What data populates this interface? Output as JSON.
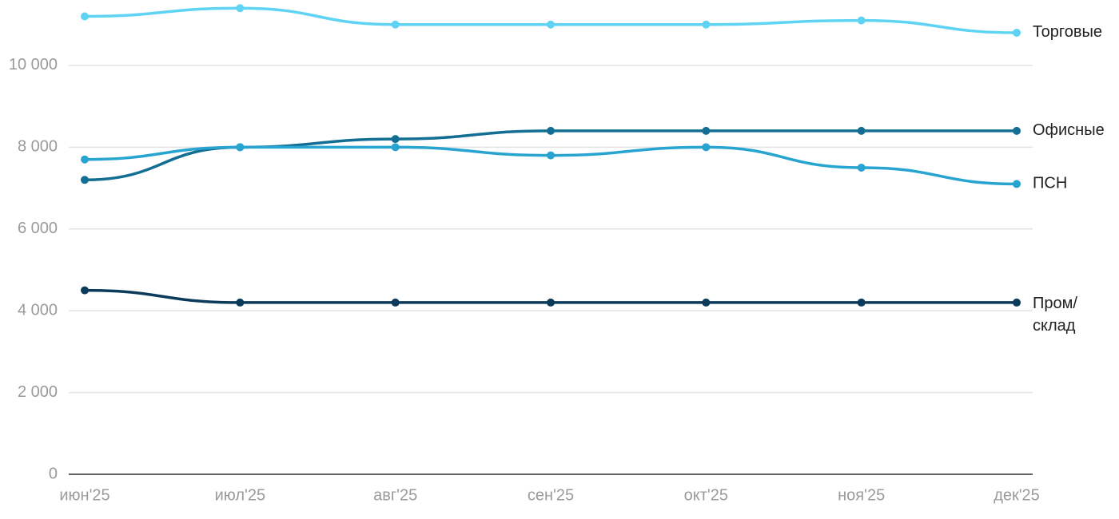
{
  "chart_data": {
    "type": "line",
    "categories": [
      "июн'25",
      "июл'25",
      "авг'25",
      "сен'25",
      "окт'25",
      "ноя'25",
      "дек'25"
    ],
    "series": [
      {
        "name": "Торговые",
        "color": "#5fd3f3",
        "values": [
          11200,
          11400,
          11000,
          11000,
          11000,
          11100,
          10800
        ]
      },
      {
        "name": "Офисные",
        "color": "#136e94",
        "values": [
          7200,
          8000,
          8200,
          8400,
          8400,
          8400,
          8400
        ]
      },
      {
        "name": "ПСН",
        "color": "#27a4d0",
        "values": [
          7700,
          8000,
          8000,
          7800,
          8000,
          7500,
          7100
        ]
      },
      {
        "name": "Пром/склад",
        "color": "#0b3a5b",
        "values": [
          4500,
          4200,
          4200,
          4200,
          4200,
          4200,
          4200
        ]
      }
    ],
    "ylim": [
      0,
      11600
    ],
    "yticks": [
      0,
      {
        "value": 2000,
        "label": "2 000"
      },
      {
        "value": 4000,
        "label": "4 000"
      },
      {
        "value": 6000,
        "label": "6 000"
      },
      {
        "value": 8000,
        "label": "8 000"
      },
      {
        "value": 10000,
        "label": "10 000"
      }
    ],
    "grid": true
  }
}
